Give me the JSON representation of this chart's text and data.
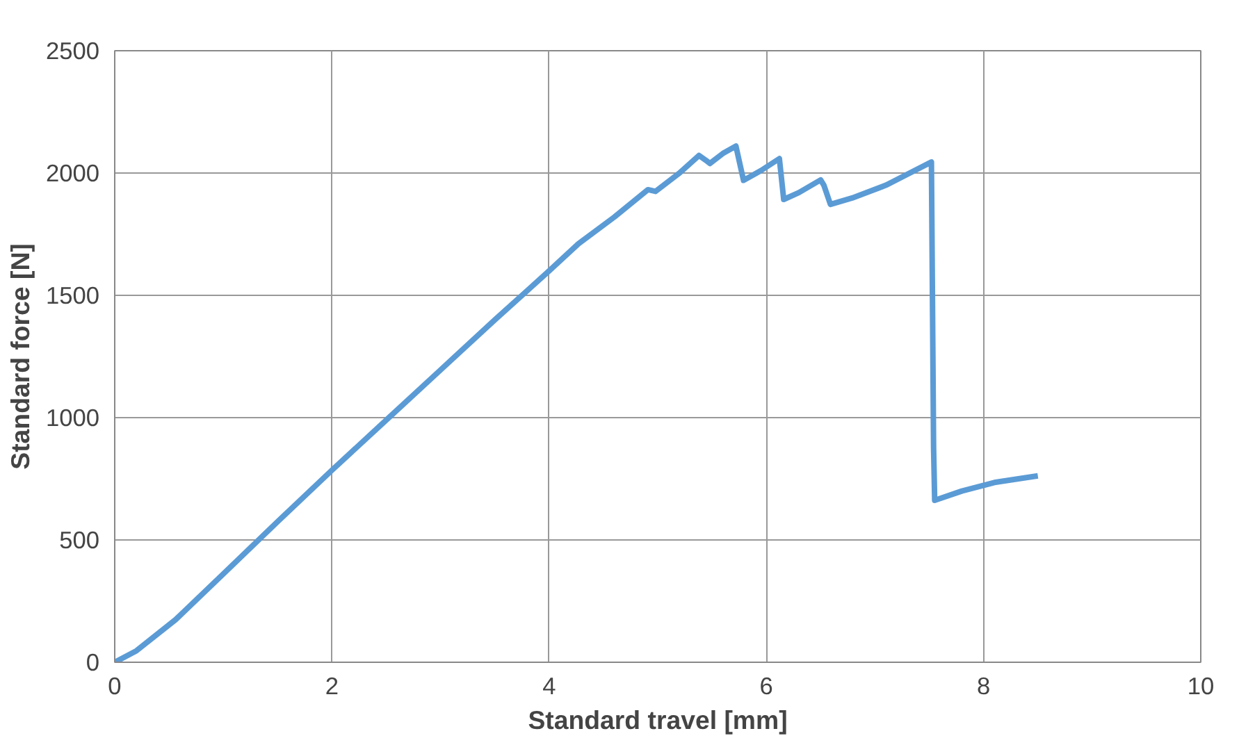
{
  "chart_data": {
    "type": "line",
    "xlabel": "Standard travel [mm]",
    "ylabel": "Standard force [N]",
    "series": [
      {
        "color": "#5b9bd5",
        "x": [
          0,
          0.2,
          0.56,
          1.0,
          1.5,
          2.0,
          2.5,
          3.0,
          3.5,
          4.0,
          4.27,
          4.6,
          4.91,
          4.98,
          5.2,
          5.38,
          5.45,
          5.48,
          5.6,
          5.72,
          5.79,
          5.95,
          6.12,
          6.16,
          6.3,
          6.5,
          6.53,
          6.59,
          6.79,
          7.1,
          7.52,
          7.54,
          7.55,
          7.8,
          8.1,
          8.5
        ],
        "values": [
          0,
          47,
          174,
          361,
          575,
          785,
          990,
          1195,
          1400,
          1600,
          1711,
          1820,
          1932,
          1925,
          2000,
          2072,
          2050,
          2039,
          2080,
          2110,
          1970,
          2010,
          2059,
          1892,
          1920,
          1972,
          1950,
          1872,
          1898,
          1950,
          2045,
          875,
          662,
          700,
          735,
          762
        ]
      }
    ],
    "xlim": [
      0,
      10
    ],
    "ylim": [
      0,
      2500
    ],
    "xticks": [
      0,
      2,
      4,
      6,
      8,
      10
    ],
    "yticks": [
      0,
      500,
      1000,
      1500,
      2000,
      2500
    ],
    "grid": true,
    "marker": "none",
    "line_style": "solid"
  }
}
